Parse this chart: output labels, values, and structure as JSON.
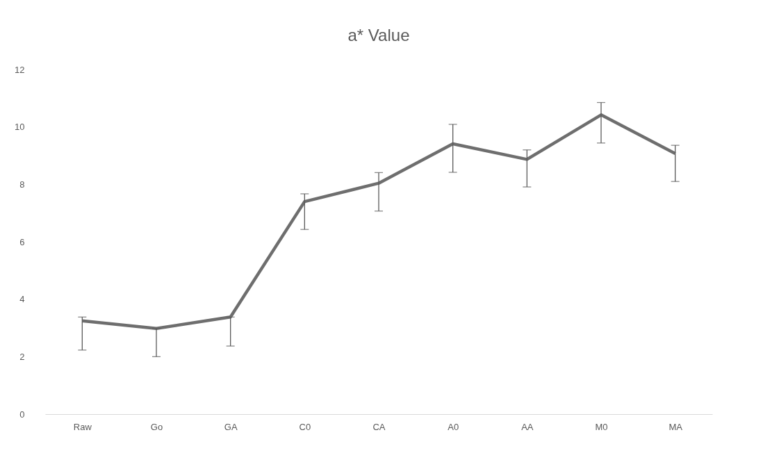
{
  "chart_data": {
    "type": "line",
    "title": "a* Value",
    "categories": [
      "Raw",
      "Go",
      "GA",
      "C0",
      "CA",
      "A0",
      "AA",
      "M0",
      "MA"
    ],
    "series": [
      {
        "color": "#6e6e6e",
        "values": [
          3.25,
          2.98,
          3.38,
          7.4,
          8.04,
          9.41,
          8.87,
          10.42,
          9.07
        ],
        "errors": [
          [
            2.23,
            3.38
          ],
          [
            2.0,
            2.98
          ],
          [
            2.37,
            3.38
          ],
          [
            6.43,
            7.67
          ],
          [
            7.07,
            8.41
          ],
          [
            8.42,
            10.09
          ],
          [
            7.91,
            9.2
          ],
          [
            9.44,
            10.85
          ],
          [
            8.1,
            9.36
          ]
        ]
      }
    ],
    "ylim": [
      0,
      12
    ],
    "yticks": [
      0,
      2,
      4,
      6,
      8,
      10,
      12
    ],
    "grid": false,
    "marker": "none",
    "line_style": "solid"
  }
}
